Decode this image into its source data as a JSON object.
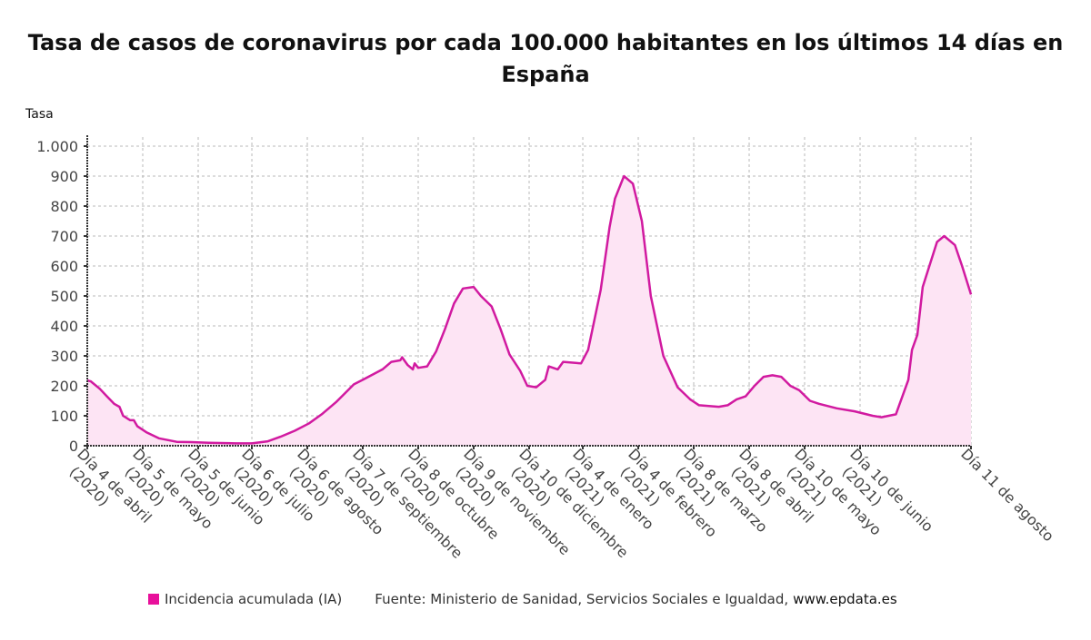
{
  "chart_data": {
    "type": "area",
    "title": "Tasa de casos de coronavirus por cada 100.000 habitantes en los últimos 14 días en España",
    "ylabel": "Tasa",
    "xlabel": "",
    "ylim": [
      0,
      1000
    ],
    "yticks": [
      0,
      100,
      200,
      300,
      400,
      500,
      600,
      700,
      800,
      900,
      1000
    ],
    "ytick_labels": [
      "0",
      "100",
      "200",
      "300",
      "400",
      "500",
      "600",
      "700",
      "800",
      "900",
      "1.000"
    ],
    "x_range_days": [
      0,
      494
    ],
    "x_start_date": "Día 4 de abril (2020)",
    "xticks": [
      {
        "day": 0,
        "label": [
          "Día 4 de abril",
          "(2020)"
        ]
      },
      {
        "day": 31,
        "label": [
          "Día 5 de mayo",
          "(2020)"
        ]
      },
      {
        "day": 62,
        "label": [
          "Día 5 de junio",
          "(2020)"
        ]
      },
      {
        "day": 92,
        "label": [
          "Día 6 de julio",
          "(2020)"
        ]
      },
      {
        "day": 123,
        "label": [
          "Día 6 de agosto",
          "(2020)"
        ]
      },
      {
        "day": 154,
        "label": [
          "Día 7 de septiembre",
          "(2020)"
        ]
      },
      {
        "day": 185,
        "label": [
          "Día 8 de octubre",
          "(2020)"
        ]
      },
      {
        "day": 216,
        "label": [
          "Día 9 de noviembre",
          "(2020)"
        ]
      },
      {
        "day": 247,
        "label": [
          "Día 10 de diciembre",
          "(2020)"
        ]
      },
      {
        "day": 277,
        "label": [
          "Día 4 de enero",
          "(2021)"
        ]
      },
      {
        "day": 308,
        "label": [
          "Día 4 de febrero",
          "(2021)"
        ]
      },
      {
        "day": 339,
        "label": [
          "Día 8 de marzo",
          "(2021)"
        ]
      },
      {
        "day": 370,
        "label": [
          "Día 8 de abril",
          "(2021)"
        ]
      },
      {
        "day": 401,
        "label": [
          "Día 10 de mayo",
          "(2021)"
        ]
      },
      {
        "day": 432,
        "label": [
          "Día 10 de junio",
          "(2021)"
        ]
      },
      {
        "day": 494,
        "label": [
          "Día 11 de agosto"
        ]
      }
    ],
    "extra_gridlines_days": [
      463
    ],
    "grid": true,
    "legend_position": "bottom",
    "series": [
      {
        "name": "Incidencia acumulada (IA)",
        "color": "#d11aa0",
        "x": [
          0,
          2,
          7,
          11,
          15,
          18,
          20,
          24,
          26,
          28,
          33,
          40,
          50,
          58,
          68,
          83,
          92,
          101,
          108,
          116,
          124,
          131,
          139,
          149,
          154,
          165,
          170,
          175,
          176,
          179,
          182,
          183,
          185,
          190,
          195,
          200,
          205,
          210,
          216,
          220,
          226,
          231,
          236,
          242,
          246,
          251,
          256,
          258,
          263,
          266,
          276,
          280,
          287,
          292,
          295,
          300,
          305,
          310,
          315,
          322,
          330,
          337,
          342,
          353,
          358,
          363,
          368,
          373,
          378,
          383,
          388,
          393,
          398,
          404,
          409,
          419,
          429,
          439,
          444,
          452,
          459,
          461,
          464,
          467,
          475,
          479,
          485,
          489,
          494
        ],
        "y": [
          218,
          215,
          190,
          165,
          140,
          130,
          100,
          85,
          85,
          65,
          45,
          25,
          13,
          12,
          10,
          8,
          8,
          15,
          30,
          50,
          75,
          105,
          145,
          205,
          220,
          255,
          280,
          285,
          295,
          270,
          255,
          275,
          260,
          265,
          315,
          390,
          475,
          525,
          530,
          500,
          465,
          390,
          305,
          250,
          200,
          195,
          220,
          265,
          255,
          280,
          275,
          320,
          520,
          730,
          825,
          900,
          875,
          750,
          500,
          300,
          195,
          155,
          135,
          130,
          135,
          155,
          165,
          200,
          230,
          235,
          230,
          200,
          185,
          150,
          140,
          125,
          115,
          100,
          95,
          105,
          220,
          320,
          370,
          530,
          680,
          700,
          670,
          600,
          505
        ]
      }
    ]
  },
  "legend": {
    "series_label": "Incidencia acumulada (IA)",
    "source": "Fuente: Ministerio de Sanidad, Servicios Sociales e Igualdad,",
    "site": "www.epdata.es"
  },
  "colors": {
    "line": "#d11aa0",
    "fill": "#fde4f4",
    "swatch": "#e8109b",
    "grid": "#b9b9b9",
    "axis": "#333333"
  }
}
